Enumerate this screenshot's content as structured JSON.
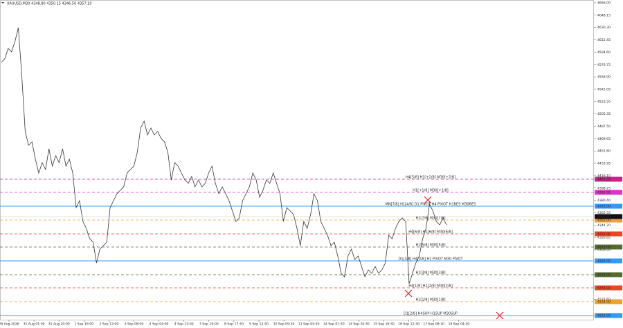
{
  "chart_data": {
    "type": "line",
    "title": "XAUUSD,M30 4348.80 4350.15 4346.50 4357.10",
    "color": "#333333",
    "values": [
      4580,
      4585,
      4600,
      4595,
      4610,
      4630,
      4560,
      4480,
      4460,
      4465,
      4440,
      4420,
      4435,
      4425,
      4455,
      4430,
      4445,
      4435,
      4455,
      4430,
      4440,
      4420,
      4370,
      4380,
      4350,
      4340,
      4325,
      4320,
      4290,
      4310,
      4315,
      4320,
      4370,
      4380,
      4390,
      4395,
      4400,
      4420,
      4425,
      4430,
      4450,
      4485,
      4495,
      4475,
      4485,
      4475,
      4480,
      4470,
      4465,
      4450,
      4410,
      4435,
      4430,
      4420,
      4410,
      4405,
      4415,
      4400,
      4410,
      4400,
      4405,
      4420,
      4430,
      4405,
      4390,
      4400,
      4390,
      4380,
      4365,
      4350,
      4355,
      4380,
      4390,
      4400,
      4420,
      4410,
      4385,
      4395,
      4410,
      4405,
      4420,
      4405,
      4390,
      4350,
      4370,
      4365,
      4360,
      4340,
      4315,
      4350,
      4340,
      4360,
      4390,
      4380,
      4350,
      4340,
      4330,
      4315,
      4320,
      4300,
      4275,
      4270,
      4300,
      4310,
      4295,
      4300,
      4285,
      4270,
      4280,
      4275,
      4285,
      4275,
      4280,
      4290,
      4330,
      4325,
      4340,
      4350,
      4355,
      4350,
      4260,
      4275,
      4290,
      4300,
      4325,
      4340,
      4375,
      4365,
      4350,
      4345,
      4355,
      4345
    ],
    "ylim": [
      4208,
      4670
    ],
    "yticks": [
      {
        "value": 4666.0,
        "label": "4666.00"
      },
      {
        "value": 4648.15,
        "label": "4648.15"
      },
      {
        "value": 4630.3,
        "label": "4630.30"
      },
      {
        "value": 4612.45,
        "label": "4612.45"
      },
      {
        "value": 4594.6,
        "label": "4594.60"
      },
      {
        "value": 4576.75,
        "label": "4576.75"
      },
      {
        "value": 4558.9,
        "label": "4558.90"
      },
      {
        "value": 4541.05,
        "label": "4541.05"
      },
      {
        "value": 4523.2,
        "label": "4523.20"
      },
      {
        "value": 4505.35,
        "label": "4505.35"
      },
      {
        "value": 4487.5,
        "label": "4487.50"
      },
      {
        "value": 4469.65,
        "label": "4469.65"
      },
      {
        "value": 4451.8,
        "label": "4451.80"
      },
      {
        "value": 4433.95,
        "label": "4433.95"
      },
      {
        "value": 4416.1,
        "label": "4416.10"
      },
      {
        "value": 4398.25,
        "label": "4398.25"
      },
      {
        "value": 4380.4,
        "label": "4380.40"
      },
      {
        "value": 4362.55,
        "label": "4362.55"
      },
      {
        "value": 4344.7,
        "label": "4344.70"
      },
      {
        "value": 4326.85,
        "label": "4326.85"
      },
      {
        "value": 4309.0,
        "label": "4309.00"
      },
      {
        "value": 4291.15,
        "label": "4291.15"
      },
      {
        "value": 4273.3,
        "label": "4273.30"
      },
      {
        "value": 4255.45,
        "label": "4255.45"
      },
      {
        "value": 4237.6,
        "label": "4237.60"
      }
    ],
    "xlabels": [
      "28 Aug 2026",
      "31 Aug 01:00",
      "31 Aug 20:00",
      "1 Sep 16:00",
      "2 Sep 12:00",
      "3 Sep 08:00",
      "4 Sep 04:00",
      "4 Sep 23:00",
      "7 Sep 19:00",
      "8 Sep 17:30",
      "9 Sep 13:30",
      "10 Sep 09:30",
      "11 Sep 05:30",
      "14 Sep 01:30",
      "14 Sep 20:30",
      "15 Sep 16:30",
      "16 Sep 12:30",
      "17 Sep 08:30",
      "18 Sep 04:30"
    ],
    "current_price": {
      "value": 4357.1,
      "label": "4357.10"
    },
    "levels": [
      {
        "name": "H4[5/8] H1[+2/8] M30[+2/8]",
        "value": 4411,
        "label": "4411.00",
        "color": "#cc2288",
        "dashed": true
      },
      {
        "name": "H1[+1/8] M30[+1/8]",
        "value": 4392,
        "label": "4392.00",
        "color": "#dd33cc",
        "dashed": true
      },
      {
        "name": "MN[7/8] H1[4/8] D1 PIVOT H4 PIVOT H1RES M30RES",
        "value": 4372,
        "label": "4372.00",
        "color": "#3399ff",
        "dashed": false
      },
      {
        "name": "H1[7/8] M30[7/8]",
        "value": 4352,
        "label": "4352.00",
        "color": "#f0a030",
        "dashed": true
      },
      {
        "name": "H4[6/8] H1[6/8] M30[6/8]",
        "value": 4332,
        "label": "4332.00",
        "color": "#ee4422",
        "dashed": true
      },
      {
        "name": "H1[5/8] M30[5/8]",
        "value": 4313,
        "label": "4313.00",
        "color": "#556b2f",
        "dashed": true
      },
      {
        "name": "D1[3/8] H4[3/8] H1 PIVOT M30 PIVOT",
        "value": 4293,
        "label": "4293.00",
        "color": "#3399ff",
        "dashed": false
      },
      {
        "name": "H1[3/8] M30[3/8]",
        "value": 4273,
        "label": "4273.00",
        "color": "#556b2f",
        "dashed": true
      },
      {
        "name": "H4[1/8] H1[2/8] M30[2/8]",
        "value": 4254,
        "label": "4254.00",
        "color": "#ee4422",
        "dashed": true
      },
      {
        "name": "H1[1/8] M30[1/8]",
        "value": 4234,
        "label": "4234.00",
        "color": "#f0a030",
        "dashed": true
      },
      {
        "name": "D1[2/8] H4SUP H1SUP M30SUP",
        "value": 4214,
        "label": "4214.00",
        "color": "#3399ff",
        "dashed": false
      }
    ]
  }
}
